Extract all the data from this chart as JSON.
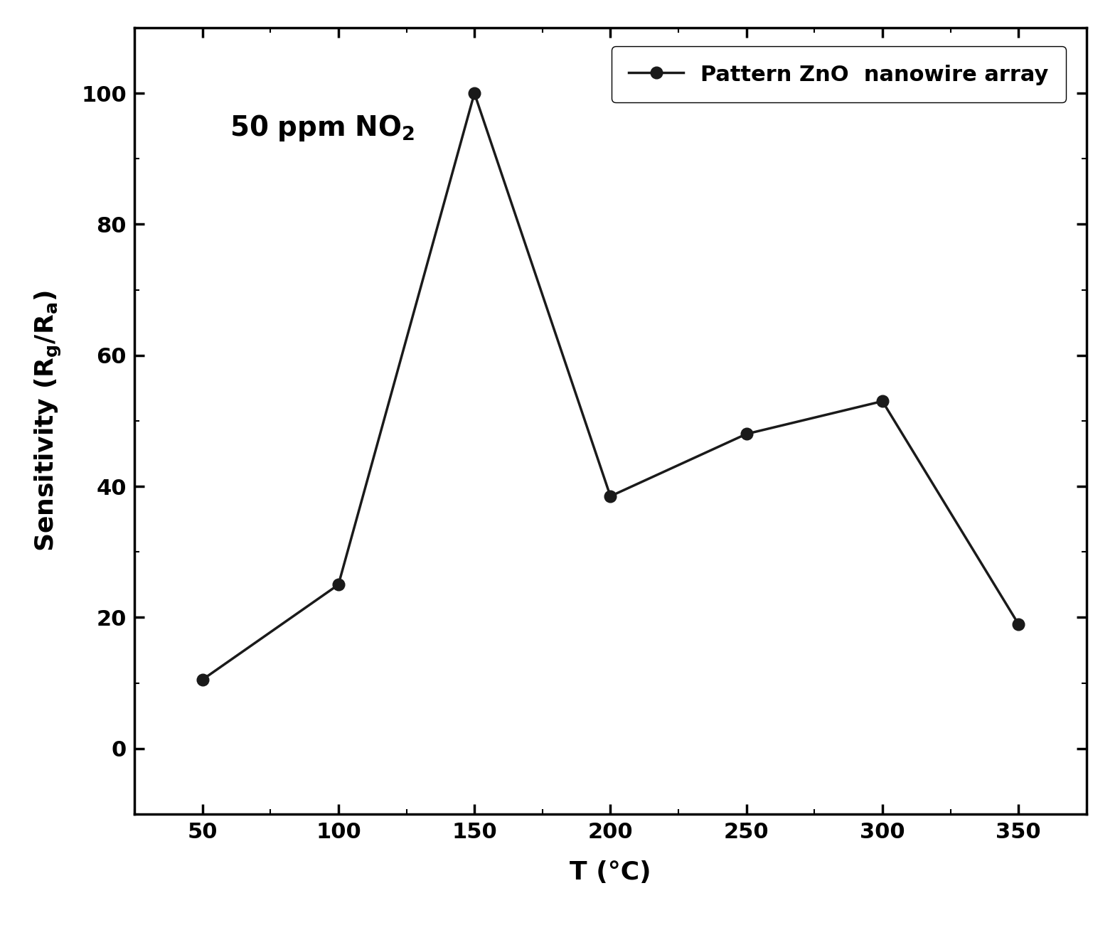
{
  "x": [
    50,
    100,
    150,
    200,
    250,
    300,
    350
  ],
  "y": [
    10.5,
    25,
    100,
    38.5,
    48,
    53,
    19
  ],
  "xlim": [
    25,
    375
  ],
  "ylim": [
    -10,
    110
  ],
  "xticks": [
    50,
    100,
    150,
    200,
    250,
    300,
    350
  ],
  "yticks": [
    0,
    20,
    40,
    60,
    80,
    100
  ],
  "xlabel": "T (°C)",
  "legend_label": "Pattern ZnO  nanowire array",
  "line_color": "#1a1a1a",
  "marker": "o",
  "marker_size": 12,
  "line_width": 2.5,
  "axis_fontsize": 26,
  "tick_fontsize": 22,
  "legend_fontsize": 22,
  "annotation_fontsize": 28,
  "background_color": "#ffffff"
}
